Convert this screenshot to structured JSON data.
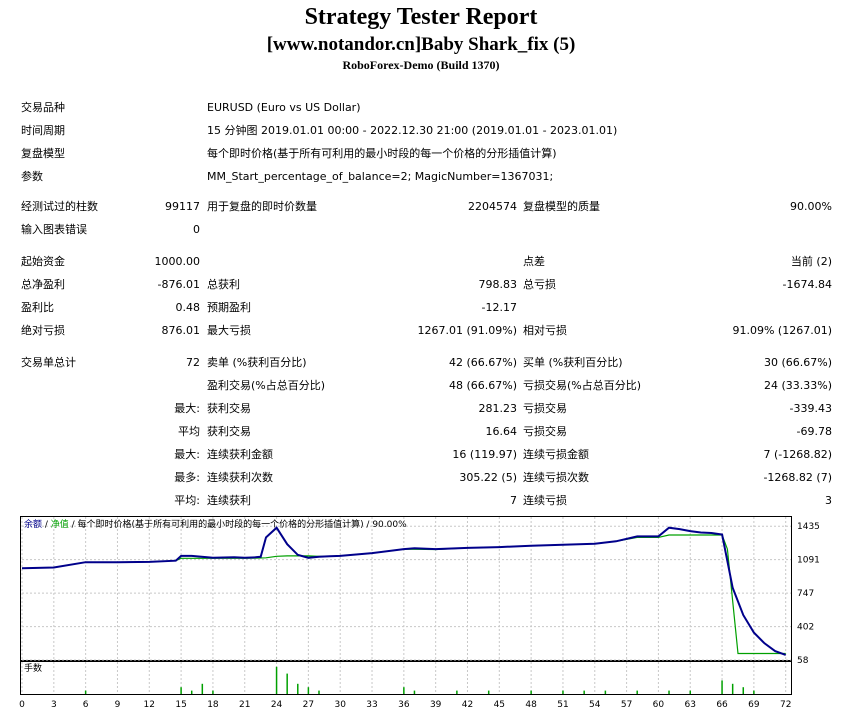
{
  "header": {
    "title": "Strategy Tester Report",
    "subtitle": "[www.notandor.cn]Baby Shark_fix (5)",
    "build": "RoboForex-Demo (Build 1370)"
  },
  "settings": {
    "symbol_label": "交易品种",
    "symbol_value": "EURUSD (Euro vs US Dollar)",
    "period_label": "时间周期",
    "period_value": "15 分钟图 2019.01.01 00:00 - 2022.12.30 21:00 (2019.01.01 - 2023.01.01)",
    "model_label": "复盘模型",
    "model_value": "每个即时价格(基于所有可利用的最小时段的每一个价格的分形插值计算)",
    "params_label": "参数",
    "params_value": "MM_Start_percentage_of_balance=2; MagicNumber=1367031;"
  },
  "summary": {
    "bars_label": "经测试过的柱数",
    "bars_value": "99117",
    "ticks_label": "用于复盘的即时价数量",
    "ticks_value": "2204574",
    "quality_label": "复盘模型的质量",
    "quality_value": "90.00%",
    "errors_label": "输入图表错误",
    "errors_value": "0",
    "deposit_label": "起始资金",
    "deposit_value": "1000.00",
    "spread_label": "点差",
    "spread_value": "当前 (2)",
    "net_label": "总净盈利",
    "net_value": "-876.01",
    "gross_profit_label": "总获利",
    "gross_profit_value": "798.83",
    "gross_loss_label": "总亏损",
    "gross_loss_value": "-1674.84",
    "pf_label": "盈利比",
    "pf_value": "0.48",
    "payoff_label": "预期盈利",
    "payoff_value": "-12.17",
    "abs_dd_label": "绝对亏损",
    "abs_dd_value": "876.01",
    "max_dd_label": "最大亏损",
    "max_dd_value": "1267.01 (91.09%)",
    "rel_dd_label": "相对亏损",
    "rel_dd_value": "91.09% (1267.01)"
  },
  "trades": {
    "total_label": "交易单总计",
    "total_value": "72",
    "short_label": "卖单 (%获利百分比)",
    "short_value": "42 (66.67%)",
    "long_label": "买单 (%获利百分比)",
    "long_value": "30 (66.67%)",
    "profit_trades_label": "盈利交易(%占总百分比)",
    "profit_trades_value": "48 (66.67%)",
    "loss_trades_label": "亏损交易(%占总百分比)",
    "loss_trades_value": "24 (33.33%)",
    "largest_prefix": "最大:",
    "largest_profit_label": "获利交易",
    "largest_profit_value": "281.23",
    "largest_loss_label": "亏损交易",
    "largest_loss_value": "-339.43",
    "average_prefix": "平均",
    "average_profit_label": "获利交易",
    "average_profit_value": "16.64",
    "average_loss_label": "亏损交易",
    "average_loss_value": "-69.78",
    "max_prefix": "最大:",
    "max_cons_wins_label": "连续获利金额",
    "max_cons_wins_value": "16 (119.97)",
    "max_cons_losses_label": "连续亏损金额",
    "max_cons_losses_value": "7 (-1268.82)",
    "maximal_prefix": "最多:",
    "maximal_cons_profit_label": "连续获利次数",
    "maximal_cons_profit_value": "305.22 (5)",
    "maximal_cons_loss_label": "连续亏损次数",
    "maximal_cons_loss_value": "-1268.82 (7)",
    "avg_prefix": "平均:",
    "avg_cons_wins_label": "连续获利",
    "avg_cons_wins_value": "7",
    "avg_cons_losses_label": "连续亏损",
    "avg_cons_losses_value": "3"
  },
  "chart_data": {
    "type": "line",
    "legend_balance": "余额",
    "legend_sep1": " / ",
    "legend_equity": "净值",
    "legend_rest": " / 每个即时价格(基于所有可利用的最小时段的每一个价格的分形插值计算) / 90.00%",
    "yticks": [
      1435,
      1091,
      747,
      402,
      58
    ],
    "ylim": [
      58,
      1530
    ],
    "xticks": [
      0,
      3,
      6,
      9,
      12,
      15,
      18,
      21,
      24,
      27,
      30,
      33,
      36,
      39,
      42,
      45,
      48,
      51,
      54,
      57,
      60,
      63,
      66,
      69,
      72
    ],
    "xlim": [
      0,
      72.5
    ],
    "volume_label": "手数",
    "colors": {
      "balance": "#00a000",
      "equity": "#00008b"
    },
    "series": [
      {
        "name": "余额",
        "x": [
          0,
          3,
          6,
          9,
          12,
          14.5,
          15,
          20,
          21,
          22,
          23,
          24,
          25,
          26,
          27,
          28,
          29,
          30,
          33,
          36,
          37,
          39,
          42,
          45,
          48,
          51,
          54,
          56,
          58,
          60,
          61,
          62,
          63,
          64,
          65,
          66,
          66.5,
          67.5,
          69,
          72
        ],
        "y": [
          1002,
          1010,
          1065,
          1065,
          1068,
          1080,
          1105,
          1105,
          1105,
          1107,
          1110,
          1125,
          1130,
          1130,
          1130,
          1125,
          1125,
          1130,
          1158,
          1200,
          1198,
          1195,
          1212,
          1220,
          1235,
          1245,
          1255,
          1280,
          1320,
          1320,
          1345,
          1345,
          1345,
          1345,
          1345,
          1345,
          1200,
          125,
          125,
          125
        ]
      },
      {
        "name": "净值",
        "x": [
          0,
          3,
          6,
          9,
          12,
          14.5,
          15,
          16,
          18,
          20,
          21,
          22,
          22.5,
          23,
          24,
          25,
          26,
          27,
          28,
          29,
          30,
          33,
          36,
          37,
          39,
          42,
          45,
          48,
          51,
          54,
          56,
          58,
          60,
          61,
          62,
          63,
          64,
          65,
          66,
          67,
          68,
          69,
          70,
          71,
          72
        ],
        "y": [
          1002,
          1010,
          1065,
          1065,
          1068,
          1080,
          1130,
          1130,
          1110,
          1115,
          1110,
          1115,
          1120,
          1320,
          1420,
          1250,
          1140,
          1110,
          1120,
          1125,
          1130,
          1158,
          1200,
          1208,
          1200,
          1212,
          1220,
          1235,
          1245,
          1255,
          1280,
          1330,
          1330,
          1420,
          1405,
          1385,
          1370,
          1365,
          1350,
          800,
          520,
          340,
          230,
          150,
          110
        ]
      }
    ],
    "volume": {
      "x": [
        6,
        15,
        16,
        17,
        18,
        24,
        25,
        26,
        27,
        28,
        36,
        37,
        41,
        44,
        48,
        51,
        53,
        55,
        58,
        61,
        63,
        66,
        67,
        68,
        69
      ],
      "y": [
        1,
        2,
        1,
        3,
        1,
        8,
        6,
        3,
        2,
        1,
        2,
        1,
        1,
        1,
        1,
        1,
        1,
        1,
        1,
        1,
        1,
        4,
        3,
        2,
        1
      ]
    }
  }
}
